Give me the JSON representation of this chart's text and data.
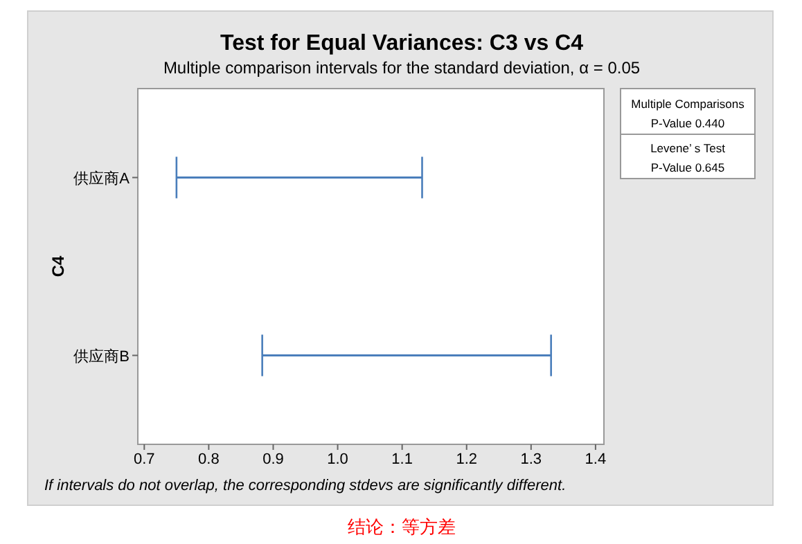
{
  "chart_data": {
    "type": "bar",
    "orientation": "horizontal",
    "title": "Test for Equal Variances: C3 vs C4",
    "subtitle": "Multiple comparison intervals for the standard deviation, α = 0.05",
    "ylabel": "C4",
    "categories": [
      "供应商A",
      "供应商B"
    ],
    "base": [
      0.75,
      0.883
    ],
    "values": [
      0.381,
      0.448
    ],
    "color": "#4a7ebb",
    "xlim": [
      0.69,
      1.413
    ],
    "xticks": [
      {
        "value": 0.7,
        "label": "0.7"
      },
      {
        "value": 0.8,
        "label": "0.8"
      },
      {
        "value": 0.9,
        "label": "0.9"
      },
      {
        "value": 1.0,
        "label": "1.0"
      },
      {
        "value": 1.1,
        "label": "1.1"
      },
      {
        "value": 1.2,
        "label": "1.2"
      },
      {
        "value": 1.3,
        "label": "1.3"
      },
      {
        "value": 1.4,
        "label": "1.4"
      }
    ],
    "grid": false,
    "annotations": [
      "Multiple Comparisons",
      "P-Value    0.440",
      "Levene’  s Test",
      "P-Value    0.645",
      "If intervals do not overlap, the corresponding stdevs are significantly different.",
      "结论：等方差"
    ]
  }
}
